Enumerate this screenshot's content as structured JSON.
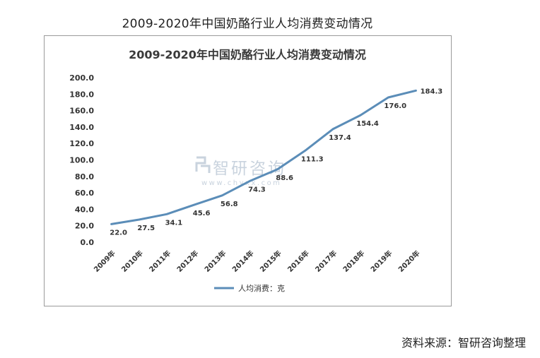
{
  "page": {
    "title": "2009-2020年中国奶酪行业人均消费变动情况",
    "source": "资料来源：智研咨询整理",
    "watermark": "智研咨询",
    "watermark_url": "www.chyxx.com"
  },
  "colors": {
    "line": "#5b8db8",
    "axis_text": "#333333",
    "title_text": "#3a3a3a",
    "watermark": "#c9d3de"
  },
  "chart_data": {
    "type": "line",
    "title": "2009-2020年中国奶酪行业人均消费变动情况",
    "categories": [
      "2009年",
      "2010年",
      "2011年",
      "2012年",
      "2013年",
      "2014年",
      "2015年",
      "2016年",
      "2017年",
      "2018年",
      "2019年",
      "2020年"
    ],
    "series": [
      {
        "name": "人均消费：克",
        "values": [
          22.0,
          27.5,
          34.1,
          45.6,
          56.8,
          74.3,
          88.6,
          111.3,
          137.4,
          154.4,
          176.0,
          184.3
        ],
        "labels": [
          "22.0",
          "27.5",
          "34.1",
          "45.6",
          "56.8",
          "74.3",
          "88.6",
          "111.3",
          "137.4",
          "154.4",
          "176.0",
          "184.3"
        ]
      }
    ],
    "yticks": [
      "0.0",
      "20.0",
      "40.0",
      "60.0",
      "80.0",
      "100.0",
      "120.0",
      "140.0",
      "160.0",
      "180.0",
      "200.0"
    ],
    "ylim": [
      0,
      200
    ],
    "xlabel": "",
    "ylabel": "",
    "grid": false,
    "legend_position": "bottom"
  }
}
